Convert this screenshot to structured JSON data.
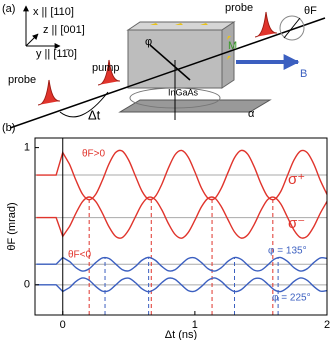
{
  "diagram": {
    "panel": "(a)",
    "axis_x": "x || [110]",
    "axis_z": "z || [001]",
    "axis_y": "y || [11̄0]",
    "probe_in": "probe",
    "pump": "pump",
    "probe_out": "probe",
    "theta": "θF",
    "phi": "φ",
    "magnetization": "M",
    "field": "B",
    "sample": "InGaAs",
    "delay": "Δt",
    "alpha": "α"
  },
  "chart_data": {
    "type": "line",
    "panel": "(b)",
    "x_label": "Δt (ns)",
    "y_label": "θF (mrad)",
    "x": [
      -0.2,
      -0.15,
      -0.1,
      -0.05,
      0,
      0.05,
      0.1,
      0.15,
      0.2,
      0.25,
      0.3,
      0.35,
      0.4,
      0.45,
      0.5,
      0.55,
      0.6,
      0.65,
      0.7,
      0.75,
      0.8,
      0.85,
      0.9,
      0.95,
      1.0,
      1.05,
      1.1,
      1.15,
      1.2,
      1.25,
      1.3,
      1.35,
      1.4,
      1.45,
      1.5,
      1.55,
      1.6,
      1.65,
      1.7,
      1.75,
      1.8,
      1.85,
      1.9,
      1.95,
      2.0
    ],
    "series": [
      {
        "name": "σ⁺",
        "color": "#e0342c",
        "values": [
          0.8,
          0.8,
          0.8,
          0.8,
          0.964,
          0.881,
          0.762,
          0.66,
          0.62,
          0.66,
          0.762,
          0.881,
          0.964,
          0.975,
          0.907,
          0.793,
          0.682,
          0.623,
          0.643,
          0.733,
          0.852,
          0.948,
          0.979,
          0.93,
          0.823,
          0.705,
          0.631,
          0.629,
          0.704,
          0.817,
          0.926,
          0.979,
          0.952,
          0.858,
          0.738,
          0.644,
          0.622,
          0.68,
          0.795,
          0.909,
          0.975,
          0.963,
          0.88,
          0.76,
          0.659
        ]
      },
      {
        "name": "σ⁻",
        "color": "#e0342c",
        "values": [
          0.49,
          0.49,
          0.49,
          0.49,
          0.353,
          0.423,
          0.522,
          0.607,
          0.64,
          0.607,
          0.522,
          0.423,
          0.353,
          0.344,
          0.401,
          0.496,
          0.588,
          0.638,
          0.621,
          0.546,
          0.446,
          0.367,
          0.34,
          0.382,
          0.471,
          0.569,
          0.631,
          0.633,
          0.57,
          0.476,
          0.385,
          0.341,
          0.364,
          0.442,
          0.542,
          0.62,
          0.638,
          0.59,
          0.494,
          0.399,
          0.344,
          0.354,
          0.424,
          0.523,
          0.607
        ]
      },
      {
        "name": "φ = 135°",
        "color": "#3b5fc0",
        "values": [
          0.15,
          0.15,
          0.15,
          0.15,
          0.199,
          0.171,
          0.125,
          0.1,
          0.117,
          0.162,
          0.196,
          0.192,
          0.152,
          0.111,
          0.102,
          0.134,
          0.179,
          0.2,
          0.179,
          0.134,
          0.102,
          0.11,
          0.152,
          0.192,
          0.196,
          0.162,
          0.117,
          0.1,
          0.125,
          0.171,
          0.199,
          0.186,
          0.143,
          0.106,
          0.106,
          0.143,
          0.186,
          0.199,
          0.171,
          0.125,
          0.1,
          0.117,
          0.162,
          0.196,
          0.192
        ]
      },
      {
        "name": "φ = 225°",
        "color": "#3b5fc0",
        "values": [
          0,
          0,
          0,
          0,
          -0.049,
          -0.021,
          0.025,
          0.05,
          0.033,
          -0.012,
          -0.046,
          -0.042,
          -0.002,
          0.039,
          0.048,
          0.016,
          -0.029,
          -0.05,
          -0.029,
          0.016,
          0.048,
          0.04,
          -0.002,
          -0.042,
          -0.046,
          -0.012,
          0.033,
          0.05,
          0.025,
          -0.021,
          -0.049,
          -0.036,
          0.007,
          0.044,
          0.044,
          0.007,
          -0.036,
          -0.049,
          -0.021,
          0.025,
          0.05,
          0.033,
          -0.012,
          -0.046,
          -0.042
        ]
      }
    ],
    "reference_lines": [
      0.8,
      0.49,
      0.15,
      0
    ],
    "dashed_lines": [
      {
        "color": "#e0342c",
        "x": [
          0.2,
          0.67,
          1.13,
          1.59
        ],
        "y_top": 0.62
      },
      {
        "color": "#3b5fc0",
        "x": [
          0.32,
          0.65,
          1.3,
          1.63
        ],
        "y_top": 0.2
      }
    ],
    "annotations": [
      "θF>0",
      "θF<0"
    ],
    "xlim": [
      -0.21,
      2.0
    ],
    "ylim": [
      -0.22,
      1.07
    ],
    "xticks": [
      0,
      1,
      2
    ],
    "yticks": [
      0,
      1
    ]
  }
}
